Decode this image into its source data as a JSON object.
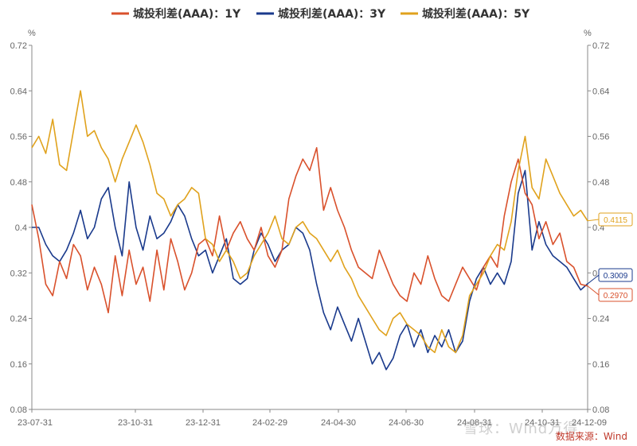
{
  "chart_data": {
    "type": "line",
    "title": "",
    "y_unit_left": "%",
    "y_unit_right": "%",
    "ylim": [
      0.08,
      0.72
    ],
    "y_ticks": [
      "0.08",
      "0.16",
      "0.24",
      "0.32",
      "0.4",
      "0.48",
      "0.56",
      "0.64",
      "0.72"
    ],
    "x_ticks": [
      "23-07-31",
      "23-10-31",
      "23-12-31",
      "24-02-29",
      "24-04-30",
      "24-06-30",
      "24-08-31",
      "24-10-31",
      "24-12-09"
    ],
    "grid": false,
    "legend_position": "top-center",
    "series": [
      {
        "name": "城投利差(AAA)：1Y",
        "color": "#d9512c",
        "end_label": "0.2970",
        "values": [
          0.44,
          0.38,
          0.3,
          0.28,
          0.34,
          0.31,
          0.37,
          0.35,
          0.29,
          0.33,
          0.3,
          0.25,
          0.35,
          0.28,
          0.36,
          0.3,
          0.33,
          0.27,
          0.36,
          0.29,
          0.38,
          0.34,
          0.29,
          0.32,
          0.37,
          0.38,
          0.35,
          0.42,
          0.36,
          0.39,
          0.41,
          0.38,
          0.36,
          0.4,
          0.35,
          0.33,
          0.36,
          0.45,
          0.49,
          0.52,
          0.5,
          0.54,
          0.43,
          0.47,
          0.43,
          0.4,
          0.36,
          0.33,
          0.32,
          0.31,
          0.36,
          0.33,
          0.3,
          0.28,
          0.27,
          0.32,
          0.3,
          0.35,
          0.31,
          0.28,
          0.27,
          0.3,
          0.33,
          0.31,
          0.29,
          0.33,
          0.35,
          0.33,
          0.42,
          0.48,
          0.52,
          0.46,
          0.44,
          0.38,
          0.41,
          0.37,
          0.39,
          0.34,
          0.33,
          0.3,
          0.297
        ]
      },
      {
        "name": "城投利差(AAA)：3Y",
        "color": "#1a3a8c",
        "end_label": "0.3009",
        "values": [
          0.4,
          0.4,
          0.37,
          0.35,
          0.34,
          0.36,
          0.39,
          0.43,
          0.38,
          0.4,
          0.45,
          0.47,
          0.4,
          0.35,
          0.48,
          0.4,
          0.36,
          0.42,
          0.38,
          0.39,
          0.41,
          0.44,
          0.42,
          0.38,
          0.35,
          0.36,
          0.32,
          0.35,
          0.38,
          0.31,
          0.3,
          0.31,
          0.36,
          0.39,
          0.37,
          0.34,
          0.36,
          0.37,
          0.4,
          0.39,
          0.36,
          0.3,
          0.25,
          0.22,
          0.26,
          0.23,
          0.2,
          0.24,
          0.2,
          0.16,
          0.18,
          0.15,
          0.17,
          0.21,
          0.23,
          0.19,
          0.22,
          0.18,
          0.21,
          0.19,
          0.22,
          0.18,
          0.2,
          0.27,
          0.31,
          0.33,
          0.3,
          0.32,
          0.3,
          0.34,
          0.46,
          0.5,
          0.36,
          0.41,
          0.37,
          0.35,
          0.34,
          0.33,
          0.31,
          0.29,
          0.3009
        ]
      },
      {
        "name": "城投利差(AAA)：5Y",
        "color": "#e0a21d",
        "end_label": "0.4115",
        "values": [
          0.54,
          0.56,
          0.53,
          0.59,
          0.51,
          0.5,
          0.57,
          0.64,
          0.56,
          0.57,
          0.54,
          0.52,
          0.48,
          0.52,
          0.55,
          0.58,
          0.55,
          0.51,
          0.46,
          0.45,
          0.42,
          0.44,
          0.45,
          0.47,
          0.46,
          0.38,
          0.37,
          0.34,
          0.36,
          0.34,
          0.31,
          0.32,
          0.35,
          0.37,
          0.39,
          0.42,
          0.38,
          0.37,
          0.4,
          0.41,
          0.39,
          0.38,
          0.36,
          0.34,
          0.36,
          0.33,
          0.31,
          0.28,
          0.26,
          0.24,
          0.22,
          0.21,
          0.24,
          0.25,
          0.23,
          0.22,
          0.21,
          0.19,
          0.18,
          0.22,
          0.19,
          0.18,
          0.21,
          0.28,
          0.3,
          0.32,
          0.35,
          0.37,
          0.36,
          0.41,
          0.5,
          0.56,
          0.47,
          0.45,
          0.52,
          0.49,
          0.46,
          0.44,
          0.42,
          0.43,
          0.4115
        ]
      }
    ]
  },
  "source_text": "数据来源：Wind",
  "watermark_text": "雪球：Wind万得"
}
